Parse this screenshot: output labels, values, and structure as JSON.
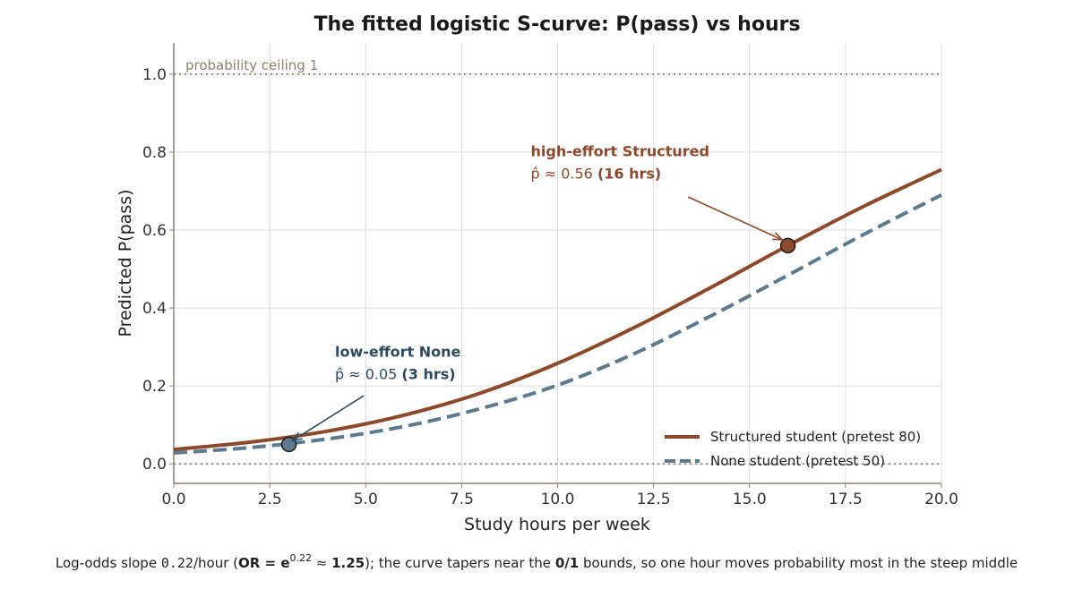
{
  "chart_data": {
    "type": "line",
    "title": "The fitted logistic S-curve: P(pass) vs hours",
    "xlabel": "Study hours per week",
    "ylabel": "Predicted P(pass)",
    "xlim": [
      0,
      20
    ],
    "ylim": [
      -0.05,
      1.08
    ],
    "xticks": [
      "0.0",
      "2.5",
      "5.0",
      "7.5",
      "10.0",
      "12.5",
      "15.0",
      "17.5",
      "20.0"
    ],
    "yticks": [
      "0.0",
      "0.2",
      "0.4",
      "0.6",
      "0.8",
      "1.0"
    ],
    "grid": true,
    "legend_position": "bottom-right",
    "series": [
      {
        "name": "Structured student (pretest 80)",
        "style": "solid",
        "color": "#8b4a2b",
        "x": [
          0,
          2,
          4,
          6,
          8,
          10,
          12,
          14,
          16,
          18,
          20
        ],
        "values": [
          0.037,
          0.056,
          0.084,
          0.125,
          0.182,
          0.258,
          0.35,
          0.453,
          0.56,
          0.662,
          0.755
        ]
      },
      {
        "name": "None student (pretest 50)",
        "style": "dashed",
        "color": "#5d7a8e",
        "x": [
          0,
          2,
          4,
          6,
          8,
          10,
          12,
          14,
          16,
          18,
          20
        ],
        "values": [
          0.028,
          0.042,
          0.064,
          0.096,
          0.142,
          0.202,
          0.283,
          0.38,
          0.484,
          0.59,
          0.69
        ]
      }
    ],
    "reference_lines": [
      {
        "y": 1.0,
        "label": "probability ceiling 1",
        "color": "#8c8470"
      },
      {
        "y": 0.0,
        "label": "",
        "color": "#8c8470"
      }
    ],
    "points": [
      {
        "x": 16,
        "y": 0.56,
        "color": "#8b4a2b"
      },
      {
        "x": 3,
        "y": 0.05,
        "color": "#5d7a8e"
      }
    ],
    "annotations": [
      {
        "line1": "high-effort Structured",
        "phat": "p̂ ≈ 0.56",
        "hours": "(16 hrs)",
        "color": "#8b4a2b",
        "text_at": [
          9.3,
          0.79
        ],
        "arrow_from": [
          13.4,
          0.685
        ],
        "arrow_to": [
          15.85,
          0.575
        ]
      },
      {
        "line1": "low-effort None",
        "phat": "p̂ ≈ 0.05",
        "hours": "(3 hrs)",
        "color": "#2e4a5c",
        "text_at": [
          4.2,
          0.275
        ],
        "arrow_from": [
          4.95,
          0.175
        ],
        "arrow_to": [
          3.1,
          0.06
        ]
      }
    ]
  },
  "caption": {
    "pre": "Log-odds slope ",
    "slope": "0.22",
    "mid": "/hour (",
    "or_label": "OR = e",
    "or_exp": "0.22",
    "approx": " ≈ ",
    "or_value": "1.25",
    "post": "); the curve tapers near the ",
    "bounds": "0/1",
    "tail": " bounds, so one hour moves probability most in the steep middle"
  }
}
